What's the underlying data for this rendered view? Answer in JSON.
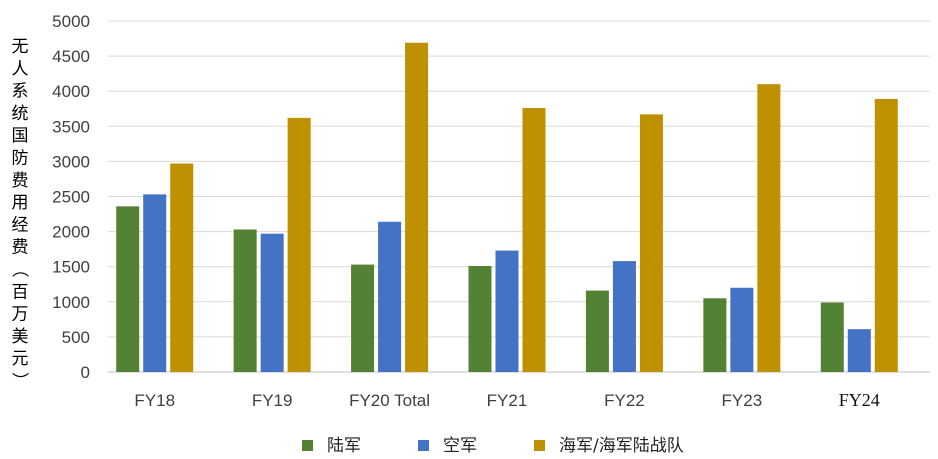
{
  "chart_data": {
    "type": "bar",
    "title": "",
    "xlabel": "",
    "ylabel": "无人系统国防费用经费（百万美元）",
    "ylim": [
      0,
      5000
    ],
    "yticks": [
      0,
      500,
      1000,
      1500,
      2000,
      2500,
      3000,
      3500,
      4000,
      4500,
      5000
    ],
    "grid": true,
    "legend_position": "bottom",
    "categories": [
      "FY18",
      "FY19",
      "FY20 Total",
      "FY21",
      "FY22",
      "FY23",
      "FY24"
    ],
    "series": [
      {
        "name": "陆军",
        "color": "#548235",
        "values": [
          2360,
          2030,
          1530,
          1510,
          1160,
          1050,
          990
        ]
      },
      {
        "name": "空军",
        "color": "#4472c4",
        "values": [
          2530,
          1970,
          2140,
          1730,
          1580,
          1200,
          610
        ]
      },
      {
        "name": "海军/海军陆战队",
        "color": "#bf9000",
        "values": [
          2970,
          3620,
          4690,
          3760,
          3670,
          4100,
          3890
        ]
      }
    ]
  }
}
